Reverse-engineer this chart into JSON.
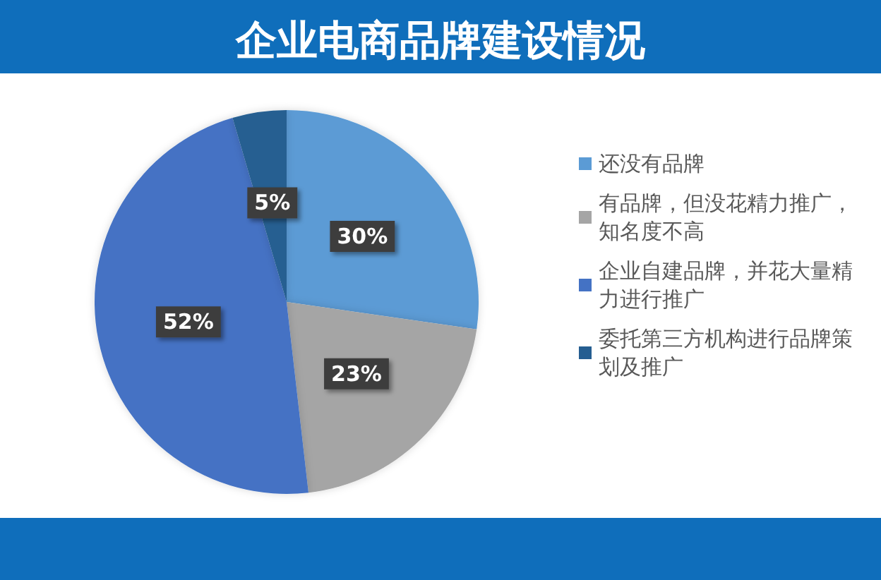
{
  "chart_data": {
    "type": "pie",
    "title": "企业电商品牌建设情况",
    "categories": [
      "还没有品牌",
      "有品牌，但没花精力推广，知名度不高",
      "企业自建品牌，并花大量精力进行推广",
      "委托第三方机构进行品牌策划及推广"
    ],
    "values": [
      30,
      23,
      52,
      5
    ],
    "colors": [
      "#5b9bd5",
      "#a5a5a5",
      "#4472c4",
      "#255e91"
    ],
    "value_labels": [
      "30%",
      "23%",
      "52%",
      "5%"
    ],
    "legend": "right"
  }
}
